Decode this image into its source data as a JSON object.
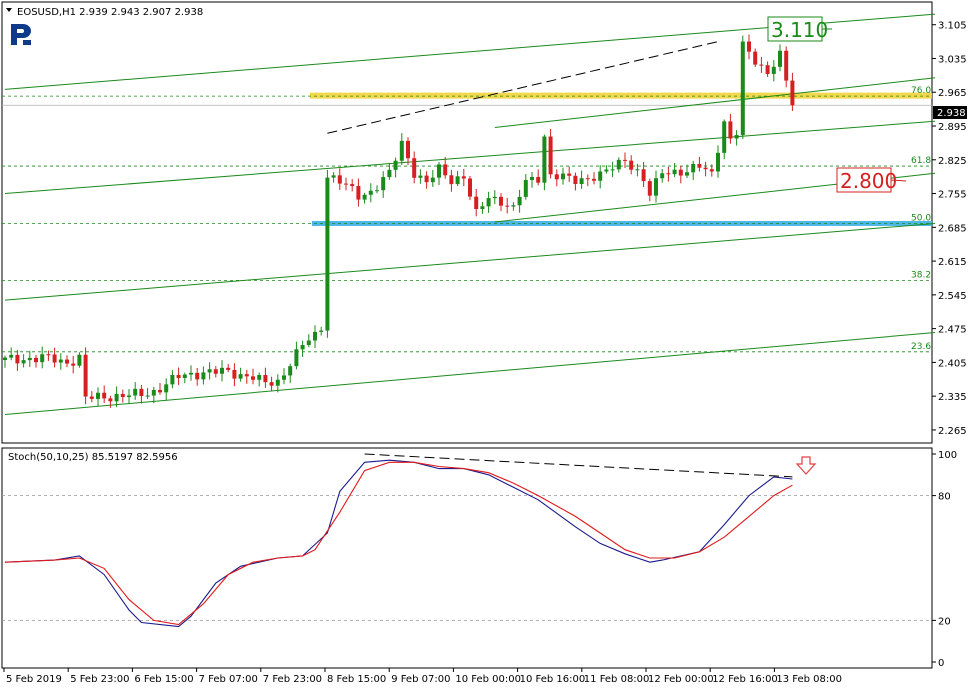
{
  "header": {
    "symbol_line": "EOSUSD,H1  2.939 2.943 2.907 2.938",
    "stoch_line": "Stoch(50,10,25) 85.5197 82.5956"
  },
  "annotations": {
    "target_up": "3.110",
    "target_down": "2.800",
    "current_price": "2.938"
  },
  "colors": {
    "bull": "#1a8a1a",
    "bear": "#d42020",
    "channel": "#1a8a1a",
    "resistance_zone": "#f2d43a",
    "support_zone": "#3ab0e6",
    "stoch_main": "#1a1a8c",
    "stoch_signal": "#e01a1a",
    "arrow": "#e04040"
  },
  "chart_data": [
    {
      "type": "candlestick",
      "symbol": "EOSUSD",
      "timeframe": "H1",
      "ylim": [
        2.24,
        3.15
      ],
      "y_ticks": [
        "3.105",
        "3.035",
        "2.965",
        "2.895",
        "2.825",
        "2.755",
        "2.685",
        "2.615",
        "2.545",
        "2.475",
        "2.405",
        "2.335",
        "2.265"
      ],
      "x_ticks": [
        "5 Feb 2019",
        "5 Feb 23:00",
        "6 Feb 15:00",
        "7 Feb 07:00",
        "7 Feb 23:00",
        "8 Feb 15:00",
        "9 Feb 07:00",
        "10 Feb 00:00",
        "10 Feb 16:00",
        "11 Feb 08:00",
        "12 Feb 00:00",
        "12 Feb 16:00",
        "13 Feb 08:00"
      ],
      "price_path": [
        [
          0,
          2.41
        ],
        [
          6,
          2.415
        ],
        [
          10,
          2.405
        ],
        [
          12,
          2.415
        ],
        [
          13,
          2.33
        ],
        [
          17,
          2.335
        ],
        [
          22,
          2.338
        ],
        [
          24,
          2.345
        ],
        [
          28,
          2.375
        ],
        [
          32,
          2.385
        ],
        [
          36,
          2.385
        ],
        [
          40,
          2.375
        ],
        [
          42,
          2.36
        ],
        [
          44,
          2.365
        ],
        [
          46,
          2.405
        ],
        [
          48,
          2.44
        ],
        [
          50,
          2.46
        ],
        [
          51,
          2.48
        ],
        [
          52,
          2.795
        ],
        [
          54,
          2.78
        ],
        [
          57,
          2.75
        ],
        [
          59,
          2.76
        ],
        [
          62,
          2.795
        ],
        [
          64,
          2.86
        ],
        [
          66,
          2.8
        ],
        [
          68,
          2.775
        ],
        [
          70,
          2.805
        ],
        [
          72,
          2.785
        ],
        [
          74,
          2.79
        ],
        [
          76,
          2.71
        ],
        [
          78,
          2.75
        ],
        [
          80,
          2.74
        ],
        [
          82,
          2.72
        ],
        [
          84,
          2.78
        ],
        [
          86,
          2.79
        ],
        [
          87,
          2.875
        ],
        [
          88,
          2.79
        ],
        [
          92,
          2.785
        ],
        [
          96,
          2.79
        ],
        [
          100,
          2.83
        ],
        [
          103,
          2.78
        ],
        [
          104,
          2.75
        ],
        [
          106,
          2.805
        ],
        [
          108,
          2.8
        ],
        [
          110,
          2.795
        ],
        [
          112,
          2.815
        ],
        [
          114,
          2.8
        ],
        [
          116,
          2.9
        ],
        [
          117,
          2.86
        ],
        [
          118,
          2.88
        ],
        [
          119,
          3.065
        ],
        [
          121,
          3.035
        ],
        [
          123,
          3.0
        ],
        [
          125,
          3.04
        ],
        [
          126,
          2.99
        ],
        [
          127,
          2.938
        ]
      ],
      "fibonacci": [
        {
          "label": "23.6",
          "value": 2.427
        },
        {
          "label": "38.2",
          "value": 2.575
        },
        {
          "label": "50.0",
          "value": 2.693
        },
        {
          "label": "61.8",
          "value": 2.812
        },
        {
          "label": "76.0",
          "value": 2.957
        }
      ],
      "zones": [
        {
          "name": "resistance",
          "value": 2.958
        },
        {
          "name": "support",
          "value": 2.693
        }
      ],
      "channel_lines": [
        [
          [
            0,
            2.297
          ],
          [
            150,
            2.467
          ]
        ],
        [
          [
            0,
            2.534
          ],
          [
            150,
            2.693
          ]
        ],
        [
          [
            0,
            2.755
          ],
          [
            150,
            2.905
          ]
        ],
        [
          [
            0,
            2.971
          ],
          [
            150,
            3.127
          ]
        ],
        [
          [
            79,
            2.696
          ],
          [
            150,
            2.797
          ]
        ],
        [
          [
            79,
            2.892
          ],
          [
            150,
            2.995
          ]
        ]
      ],
      "trend_lines": [
        [
          [
            52,
            2.88
          ],
          [
            115,
            3.07
          ]
        ]
      ]
    },
    {
      "type": "line",
      "name": "Stoch(50,10,25)",
      "ylim": [
        0,
        100
      ],
      "y_ticks": [
        "100",
        "80",
        "20",
        "0"
      ],
      "levels": [
        80,
        20
      ],
      "series": [
        {
          "name": "main",
          "values": [
            [
              0,
              48
            ],
            [
              8,
              49
            ],
            [
              12,
              51
            ],
            [
              16,
              42
            ],
            [
              20,
              25
            ],
            [
              22,
              19
            ],
            [
              28,
              17
            ],
            [
              30,
              22
            ],
            [
              34,
              38
            ],
            [
              38,
              46
            ],
            [
              44,
              50
            ],
            [
              48,
              51
            ],
            [
              52,
              62
            ],
            [
              54,
              82
            ],
            [
              58,
              96
            ],
            [
              62,
              97
            ],
            [
              66,
              96
            ],
            [
              70,
              93
            ],
            [
              74,
              93
            ],
            [
              78,
              90
            ],
            [
              82,
              84
            ],
            [
              86,
              78
            ],
            [
              92,
              65
            ],
            [
              96,
              57
            ],
            [
              100,
              52
            ],
            [
              104,
              48
            ],
            [
              106,
              49
            ],
            [
              112,
              53
            ],
            [
              116,
              66
            ],
            [
              120,
              80
            ],
            [
              124,
              89
            ],
            [
              127,
              88
            ]
          ]
        },
        {
          "name": "signal",
          "values": [
            [
              0,
              48
            ],
            [
              8,
              49
            ],
            [
              12,
              50
            ],
            [
              16,
              45
            ],
            [
              20,
              30
            ],
            [
              24,
              20
            ],
            [
              28,
              18
            ],
            [
              32,
              28
            ],
            [
              36,
              42
            ],
            [
              40,
              48
            ],
            [
              44,
              50
            ],
            [
              48,
              51
            ],
            [
              50,
              54
            ],
            [
              54,
              72
            ],
            [
              58,
              92
            ],
            [
              62,
              96
            ],
            [
              66,
              96
            ],
            [
              70,
              94
            ],
            [
              74,
              93
            ],
            [
              78,
              91
            ],
            [
              82,
              86
            ],
            [
              86,
              80
            ],
            [
              92,
              70
            ],
            [
              96,
              62
            ],
            [
              100,
              54
            ],
            [
              104,
              50
            ],
            [
              108,
              50
            ],
            [
              112,
              53
            ],
            [
              116,
              60
            ],
            [
              120,
              70
            ],
            [
              124,
              80
            ],
            [
              127,
              85
            ]
          ]
        }
      ],
      "divergence_line": [
        [
          58,
          100
        ],
        [
          127,
          89
        ]
      ]
    }
  ]
}
